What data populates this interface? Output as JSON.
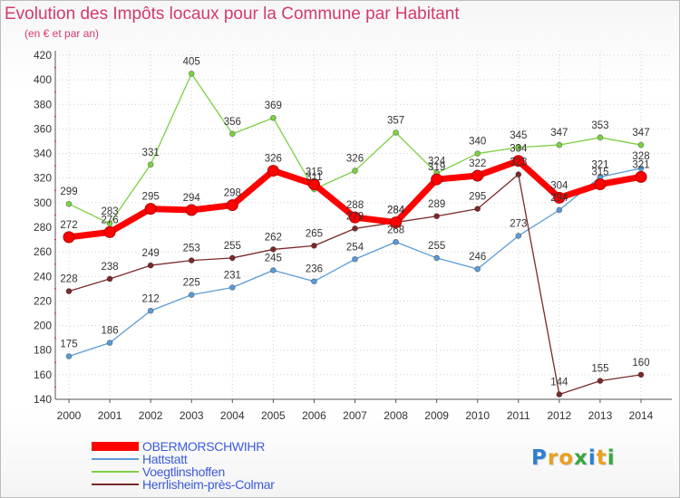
{
  "header": {
    "title": "Evolution des Impôts locaux pour la Commune par Habitant",
    "subtitle": "(en € et par an)"
  },
  "logo": {
    "text": "Proxiti",
    "letters": [
      "P",
      "r",
      "o",
      "x",
      "i",
      "t",
      "i"
    ],
    "colors": [
      "#2f7fd1",
      "#e8a020",
      "#e8a020",
      "#3aa640",
      "#2f7fd1",
      "#e8a020",
      "#3aa640"
    ]
  },
  "chart_data": {
    "type": "line",
    "title": "Evolution des Impôts locaux pour la Commune par Habitant",
    "subtitle": "(en € et par an)",
    "xlabel": "",
    "ylabel": "",
    "x": [
      "2000",
      "2001",
      "2002",
      "2003",
      "2004",
      "2005",
      "2006",
      "2007",
      "2008",
      "2009",
      "2010",
      "2011",
      "2012",
      "2013",
      "2014"
    ],
    "yticks": [
      140,
      160,
      180,
      200,
      220,
      240,
      260,
      280,
      300,
      320,
      340,
      360,
      380,
      400,
      420
    ],
    "ylim": [
      140,
      420
    ],
    "grid": true,
    "legend_position": "bottom-left",
    "series": [
      {
        "name": "OBERMORSCHWIHR",
        "color": "#ff0000",
        "values": [
          272,
          276,
          295,
          294,
          298,
          326,
          315,
          288,
          284,
          319,
          322,
          334,
          304,
          315,
          321
        ]
      },
      {
        "name": "Hattstatt",
        "color": "#5b9bd5",
        "values": [
          175,
          186,
          212,
          225,
          231,
          245,
          236,
          254,
          268,
          255,
          246,
          273,
          294,
          321,
          328
        ]
      },
      {
        "name": "Voegtlinshoffen",
        "color": "#7dcf45",
        "values": [
          299,
          283,
          331,
          405,
          356,
          369,
          311,
          326,
          357,
          324,
          340,
          345,
          347,
          353,
          347
        ]
      },
      {
        "name": "Herrlisheim-près-Colmar",
        "color": "#7a2a2a",
        "values": [
          228,
          238,
          249,
          253,
          255,
          262,
          265,
          279,
          284,
          289,
          295,
          323,
          144,
          155,
          160
        ]
      }
    ]
  }
}
